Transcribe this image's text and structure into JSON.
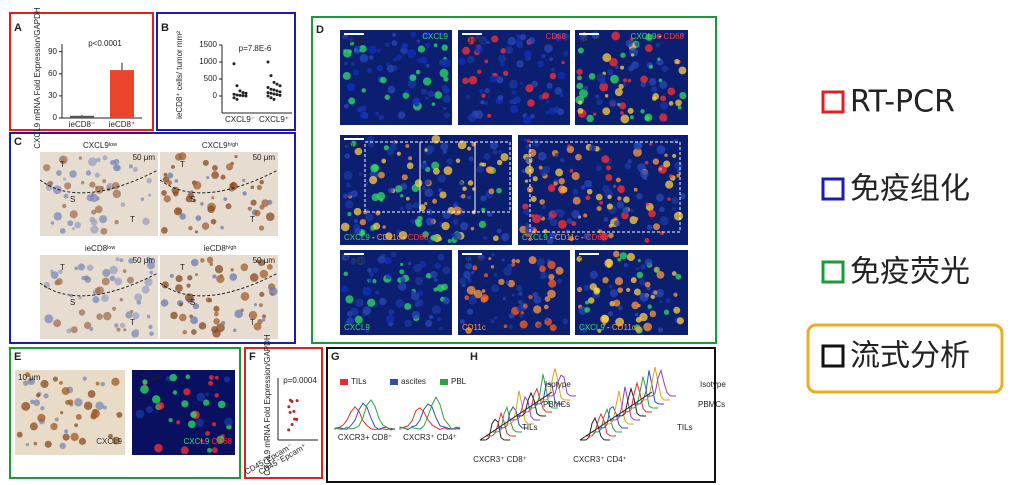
{
  "panels": {
    "A": {
      "letter": "A",
      "ylabel": "CXCL9 mRNA Fold Expression/GAPDH",
      "pvalue": "p<0.0001",
      "categories": [
        "ieCD8⁻",
        "ieCD8⁺"
      ],
      "values": [
        3,
        65
      ],
      "errors": [
        1,
        10
      ],
      "ylim": [
        0,
        95
      ],
      "yticks": [
        0,
        30,
        60,
        90
      ]
    },
    "B": {
      "letter": "B",
      "ylabel": "ieCD8⁺ cells/ tumor mm²",
      "pvalue": "p=7.8E-6",
      "categories": [
        "CXCL9⁻",
        "CXCL9⁺"
      ],
      "ylim": [
        -500,
        1500
      ],
      "yticks": [
        0,
        500,
        1000,
        1500
      ],
      "series": [
        [
          950,
          300,
          150,
          100,
          80,
          50,
          30,
          20,
          10,
          0,
          -50,
          -100
        ],
        [
          1000,
          600,
          400,
          350,
          300,
          250,
          200,
          180,
          150,
          120,
          100,
          80,
          60,
          40,
          20,
          0,
          -50,
          -100
        ]
      ]
    },
    "C": {
      "letter": "C",
      "titles": [
        "CXCL9ˡᵒʷ",
        "CXCL9ʰⁱᵍʰ",
        "ieCD8ˡᵒʷ",
        "ieCD8ʰⁱᵍʰ"
      ],
      "scale": "50 μm",
      "tumor": "T",
      "stroma": "S"
    },
    "D": {
      "letter": "D",
      "scales": [
        "50 μm",
        "50 μm",
        "50 μm",
        "50 μm",
        "25 μm",
        "25 μm",
        "25 μm"
      ],
      "labels": [
        [
          "CXCL9"
        ],
        [
          "CD68"
        ],
        [
          "CXCL9",
          " - ",
          "CD68"
        ],
        [
          "CXCL9",
          " - ",
          "CD11c",
          " - ",
          "CD68"
        ],
        [
          "CXCL9",
          " - ",
          "CD11c",
          " - ",
          "CD68"
        ],
        [
          "CXCL9"
        ],
        [
          "CD11c"
        ],
        [
          "CXCL9",
          " - ",
          "CD11c"
        ]
      ],
      "label_colors": {
        "CXCL9": "#3ddc5a",
        "CD68": "#ff3b3b",
        "CD11c": "#ff9a3c",
        " - ": "#ffffff"
      }
    },
    "E": {
      "letter": "E",
      "scales": [
        "10 μm",
        "20 μm"
      ],
      "stains": [
        [
          "CXCL9"
        ],
        [
          "CXCL9",
          " ",
          "CD68"
        ]
      ]
    },
    "F": {
      "letter": "F",
      "ylabel": "CXCL9 mRNA Fold Expression/GAPDH",
      "pvalue": "p=0.0004",
      "categories": [
        "CD45⁺Epcam⁻",
        "CD45⁻Epcam⁺"
      ]
    },
    "G": {
      "letter": "G",
      "legend": [
        {
          "name": "TILs",
          "color": "#e03030"
        },
        {
          "name": "ascites",
          "color": "#3050b0"
        },
        {
          "name": "PBL",
          "color": "#30a040"
        }
      ],
      "xlabels": [
        "CXCR3+ CD8⁺",
        "CXCR3⁺ CD4⁺"
      ]
    },
    "H": {
      "letter": "H",
      "labels": [
        "Isotype",
        "PBMCs",
        "TILs"
      ],
      "xlabels": [
        "CXCR3⁺ CD8⁺",
        "CXCR3⁺ CD4⁺"
      ]
    }
  },
  "legend": [
    {
      "label": "RT-PCR",
      "color": "#e02020"
    },
    {
      "label": "免疫组化",
      "color": "#1c1cb0"
    },
    {
      "label": "免疫荧光",
      "color": "#1a9a3a"
    },
    {
      "label": "流式分析",
      "color": "#111111"
    }
  ]
}
